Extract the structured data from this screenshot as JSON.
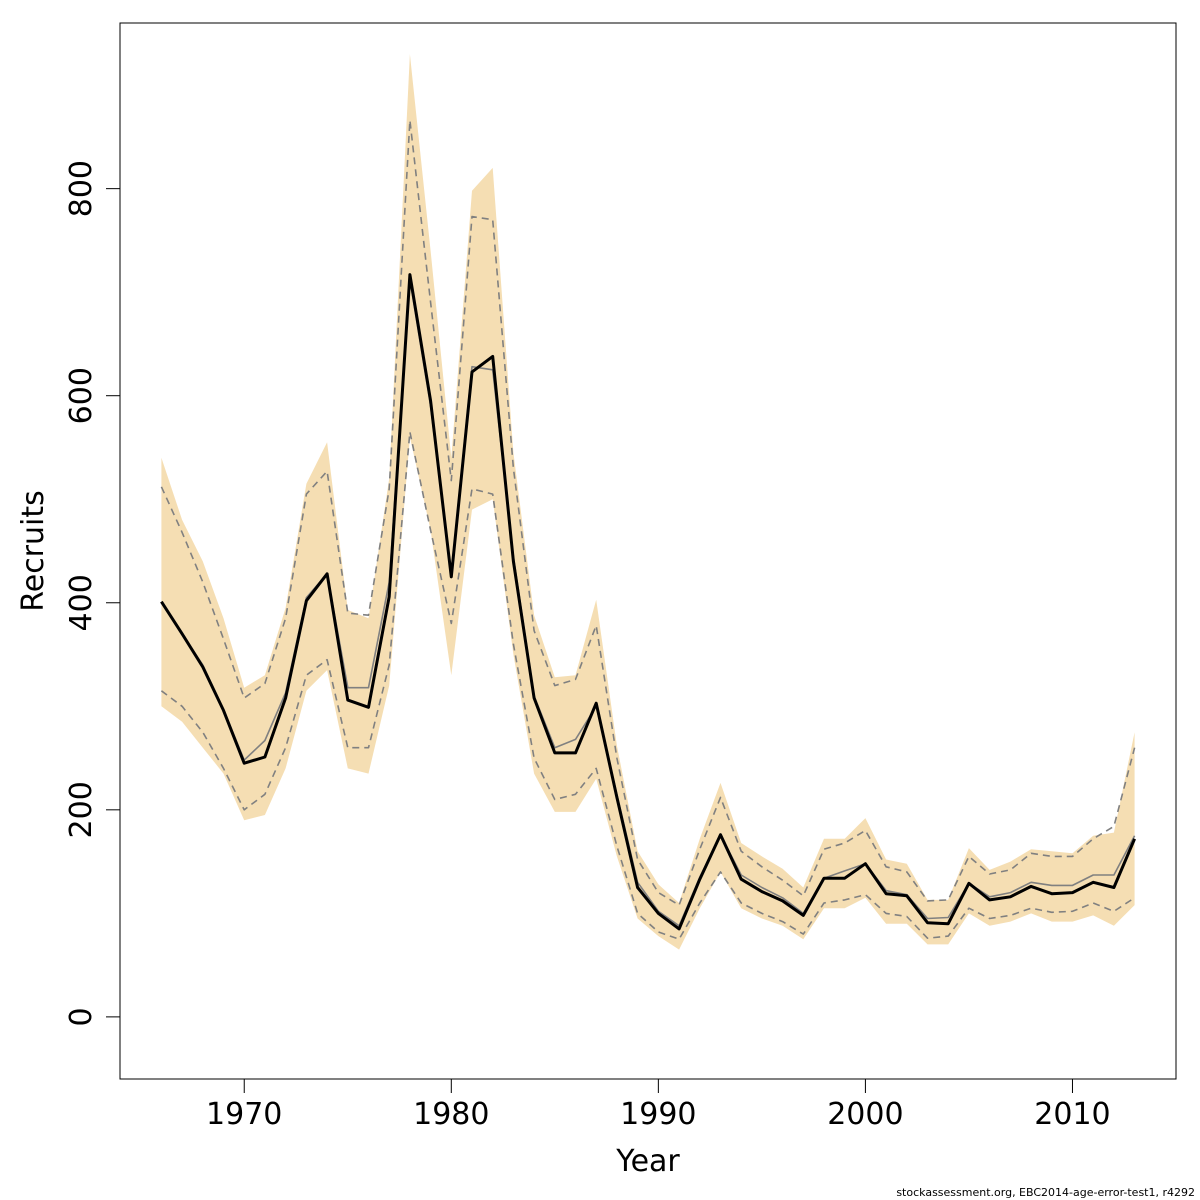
{
  "chart_data": {
    "type": "line",
    "title": "",
    "xlabel": "Year",
    "ylabel": "Recruits",
    "xlim": [
      1964,
      2015
    ],
    "ylim": [
      -60,
      960
    ],
    "xticks": [
      1970,
      1980,
      1990,
      2000,
      2010
    ],
    "yticks": [
      0,
      200,
      400,
      600,
      800
    ],
    "x": [
      1966,
      1967,
      1968,
      1969,
      1970,
      1971,
      1972,
      1973,
      1974,
      1975,
      1976,
      1977,
      1978,
      1979,
      1980,
      1981,
      1982,
      1983,
      1984,
      1985,
      1986,
      1987,
      1988,
      1989,
      1990,
      1991,
      1992,
      1993,
      1994,
      1995,
      1996,
      1997,
      1998,
      1999,
      2000,
      2001,
      2002,
      2003,
      2004,
      2005,
      2006,
      2007,
      2008,
      2009,
      2010,
      2011,
      2012,
      2013
    ],
    "band": {
      "color": "#f5deb3",
      "upper": [
        540,
        480,
        440,
        385,
        318,
        330,
        395,
        515,
        555,
        393,
        385,
        520,
        930,
        740,
        540,
        798,
        820,
        545,
        388,
        328,
        330,
        403,
        262,
        160,
        128,
        110,
        172,
        226,
        168,
        155,
        143,
        125,
        172,
        172,
        192,
        152,
        148,
        113,
        113,
        163,
        142,
        150,
        162,
        160,
        158,
        175,
        178,
        275
      ],
      "lower": [
        300,
        285,
        260,
        235,
        190,
        195,
        240,
        315,
        335,
        240,
        235,
        320,
        560,
        470,
        330,
        490,
        500,
        350,
        235,
        198,
        198,
        230,
        155,
        95,
        78,
        65,
        105,
        140,
        105,
        95,
        88,
        75,
        105,
        105,
        115,
        90,
        90,
        70,
        70,
        100,
        88,
        92,
        100,
        92,
        92,
        98,
        88,
        108
      ]
    },
    "series": [
      {
        "role": "estimate",
        "color": "#000000",
        "style": "solid",
        "values": [
          401,
          370,
          338,
          296,
          245,
          251,
          308,
          402,
          428,
          306,
          299,
          406,
          717,
          595,
          425,
          623,
          638,
          440,
          308,
          255,
          255,
          303,
          212,
          125,
          100,
          85,
          133,
          176,
          133,
          121,
          112,
          98,
          134,
          134,
          148,
          119,
          117,
          91,
          90,
          129,
          113,
          116,
          126,
          119,
          120,
          130,
          125,
          172
        ]
      },
      {
        "role": "alternate-estimate",
        "color": "#808080",
        "style": "solid",
        "values": [
          401,
          370,
          340,
          297,
          248,
          267,
          313,
          405,
          428,
          318,
          318,
          420,
          712,
          590,
          428,
          628,
          625,
          445,
          310,
          260,
          268,
          300,
          215,
          130,
          102,
          88,
          135,
          176,
          137,
          125,
          115,
          100,
          134,
          141,
          148,
          122,
          118,
          95,
          96,
          129,
          116,
          120,
          130,
          127,
          127,
          137,
          137,
          175
        ]
      },
      {
        "role": "alternate-upper",
        "color": "#808080",
        "style": "dashed",
        "values": [
          512,
          468,
          420,
          365,
          308,
          322,
          385,
          505,
          527,
          390,
          388,
          510,
          866,
          690,
          518,
          773,
          770,
          530,
          373,
          320,
          326,
          378,
          250,
          152,
          120,
          108,
          162,
          212,
          160,
          145,
          132,
          117,
          162,
          168,
          180,
          145,
          140,
          112,
          113,
          155,
          138,
          142,
          158,
          155,
          155,
          172,
          184,
          260
        ]
      },
      {
        "role": "alternate-lower",
        "color": "#808080",
        "style": "dashed",
        "values": [
          315,
          300,
          275,
          240,
          200,
          215,
          260,
          330,
          345,
          260,
          260,
          340,
          565,
          470,
          380,
          510,
          505,
          360,
          250,
          210,
          215,
          240,
          165,
          100,
          82,
          75,
          110,
          140,
          110,
          100,
          92,
          80,
          110,
          113,
          118,
          100,
          97,
          76,
          78,
          105,
          95,
          98,
          105,
          101,
          102,
          110,
          102,
          115
        ]
      }
    ]
  },
  "footer": {
    "note": "stockassessment.org, EBC2014-age-error-test1, r4292"
  }
}
